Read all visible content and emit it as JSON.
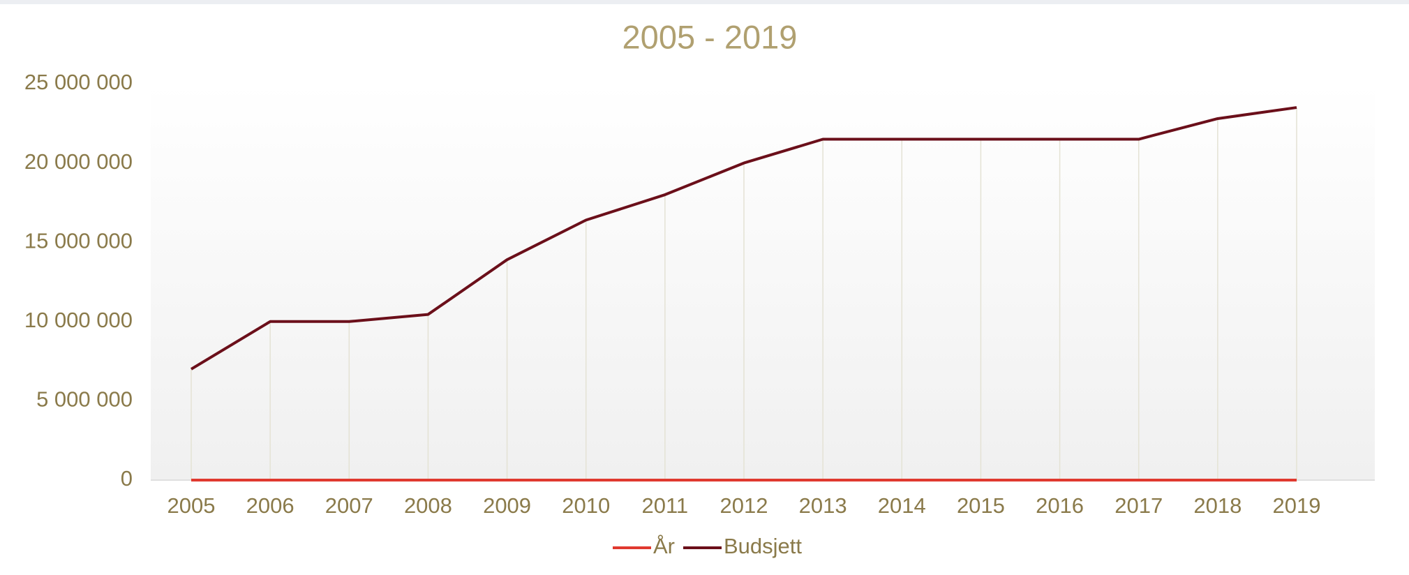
{
  "chart_data": {
    "type": "line",
    "title": "2005 - 2019",
    "categories": [
      "2005",
      "2006",
      "2007",
      "2008",
      "2009",
      "2010",
      "2011",
      "2012",
      "2013",
      "2014",
      "2015",
      "2016",
      "2017",
      "2018",
      "2019"
    ],
    "series": [
      {
        "name": "År",
        "color": "#e0392f",
        "values": [
          2005,
          2006,
          2007,
          2008,
          2009,
          2010,
          2011,
          2012,
          2013,
          2014,
          2015,
          2016,
          2017,
          2018,
          2019
        ]
      },
      {
        "name": "Budsjett",
        "color": "#6b0f1a",
        "values": [
          7000000,
          10000000,
          10000000,
          10450000,
          13900000,
          16400000,
          18000000,
          20000000,
          21500000,
          21500000,
          21500000,
          21500000,
          21500000,
          22800000,
          23500000
        ]
      }
    ],
    "ylim": [
      0,
      25000000
    ],
    "yticks": [
      0,
      {
        "value": 5000000,
        "label": "5 000 000"
      },
      {
        "value": 10000000,
        "label": "10 000 000"
      },
      {
        "value": 15000000,
        "label": "15 000 000"
      },
      {
        "value": 20000000,
        "label": "20 000 000"
      },
      {
        "value": 25000000,
        "label": "25 000 000"
      }
    ],
    "legend": "bottom"
  }
}
